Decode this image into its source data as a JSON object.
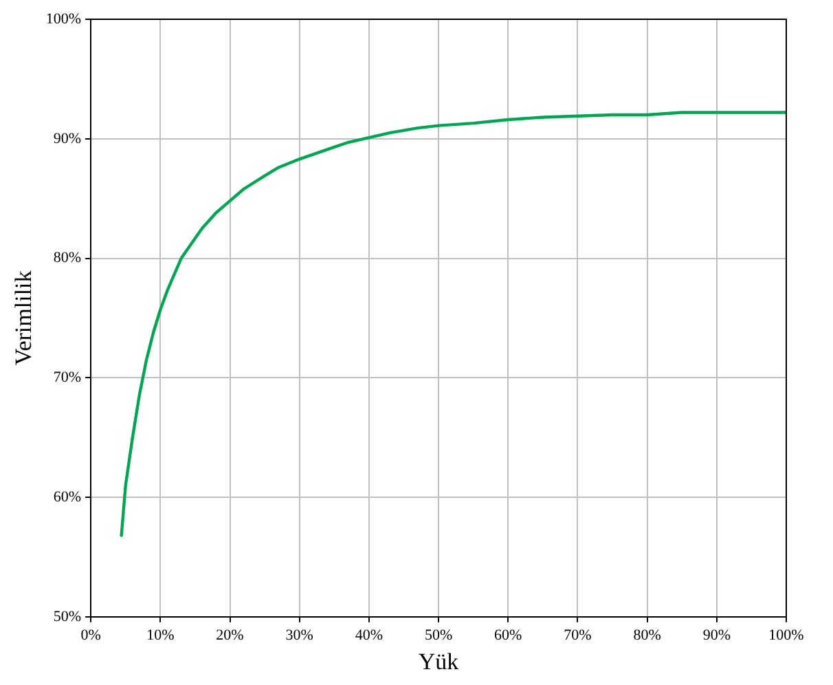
{
  "chart_data": {
    "type": "line",
    "xlabel": "Yük",
    "ylabel": "Verimlilik",
    "x": [
      4.4,
      5,
      6,
      7,
      8,
      9,
      10,
      11,
      13,
      16,
      18,
      20,
      22,
      25,
      27,
      30,
      33,
      35,
      37,
      40,
      43,
      45,
      47,
      50,
      55,
      60,
      65,
      70,
      75,
      80,
      85,
      90,
      95,
      100
    ],
    "series": [
      {
        "color": "#00a651",
        "values": [
          56.8,
          61,
          65,
          68.6,
          71.5,
          73.8,
          75.7,
          77.3,
          80,
          82.5,
          83.8,
          84.8,
          85.8,
          86.9,
          87.6,
          88.3,
          88.9,
          89.3,
          89.7,
          90.1,
          90.5,
          90.7,
          90.9,
          91.1,
          91.3,
          91.6,
          91.8,
          91.9,
          92,
          92,
          92.2,
          92.2,
          92.2,
          92.2
        ]
      }
    ],
    "xlim": [
      0,
      100
    ],
    "ylim": [
      50,
      100
    ],
    "xticks": [
      {
        "value": 0,
        "label": "0%"
      },
      {
        "value": 10,
        "label": "10%"
      },
      {
        "value": 20,
        "label": "20%"
      },
      {
        "value": 30,
        "label": "30%"
      },
      {
        "value": 40,
        "label": "40%"
      },
      {
        "value": 50,
        "label": "50%"
      },
      {
        "value": 60,
        "label": "60%"
      },
      {
        "value": 70,
        "label": "70%"
      },
      {
        "value": 80,
        "label": "80%"
      },
      {
        "value": 90,
        "label": "90%"
      },
      {
        "value": 100,
        "label": "100%"
      }
    ],
    "yticks": [
      {
        "value": 50,
        "label": "50%"
      },
      {
        "value": 60,
        "label": "60%"
      },
      {
        "value": 70,
        "label": "70%"
      },
      {
        "value": 80,
        "label": "80%"
      },
      {
        "value": 90,
        "label": "90%"
      },
      {
        "value": 100,
        "label": "100%"
      }
    ],
    "grid": true,
    "legend": false,
    "marker": "none",
    "line_style": "solid"
  }
}
